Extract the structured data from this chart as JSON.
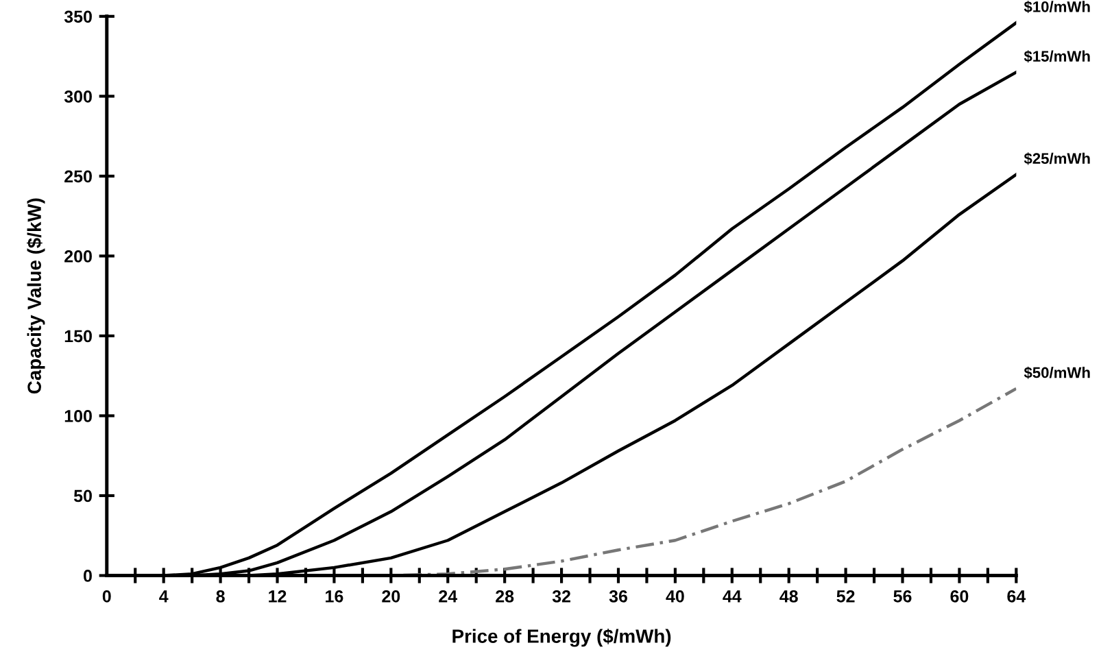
{
  "chart_data": {
    "type": "line",
    "xlabel": "Price of Energy ($/mWh)",
    "ylabel": "Capacity Value ($/kW)",
    "xlim": [
      0,
      64
    ],
    "ylim": [
      0,
      350
    ],
    "xticks": [
      0,
      {
        "value": 2,
        "label": null
      },
      4,
      {
        "value": 6,
        "label": null
      },
      8,
      {
        "value": 10,
        "label": null
      },
      12,
      {
        "value": 14,
        "label": null
      },
      16,
      {
        "value": 18,
        "label": null
      },
      20,
      {
        "value": 22,
        "label": null
      },
      24,
      {
        "value": 26,
        "label": null
      },
      28,
      {
        "value": 30,
        "label": null
      },
      32,
      {
        "value": 34,
        "label": null
      },
      36,
      {
        "value": 38,
        "label": null
      },
      40,
      {
        "value": 42,
        "label": null
      },
      44,
      {
        "value": 46,
        "label": null
      },
      48,
      {
        "value": 50,
        "label": null
      },
      52,
      {
        "value": 54,
        "label": null
      },
      56,
      {
        "value": 58,
        "label": null
      },
      60,
      {
        "value": 62,
        "label": null
      },
      64
    ],
    "yticks": [
      0,
      50,
      100,
      150,
      200,
      250,
      300,
      350
    ],
    "grid": false,
    "legend": false,
    "series": [
      {
        "name": "$10/mWh",
        "color": "#000000",
        "line_style": "solid",
        "x": [
          2,
          4,
          6,
          8,
          10,
          12,
          16,
          20,
          24,
          28,
          32,
          36,
          40,
          44,
          48,
          52,
          56,
          60,
          64
        ],
        "values": [
          0,
          0,
          1,
          5,
          11,
          19,
          42,
          64,
          88,
          112,
          137,
          162,
          188,
          217,
          242,
          268,
          293,
          320,
          346
        ]
      },
      {
        "name": "$15/mWh",
        "color": "#000000",
        "line_style": "solid",
        "x": [
          2,
          4,
          6,
          8,
          10,
          12,
          16,
          20,
          24,
          28,
          32,
          36,
          40,
          44,
          48,
          52,
          56,
          60,
          64
        ],
        "values": [
          0,
          0,
          0,
          1,
          3,
          8,
          22,
          40,
          62,
          85,
          112,
          139,
          165,
          191,
          217,
          243,
          269,
          295,
          315
        ]
      },
      {
        "name": "$25/mWh",
        "color": "#000000",
        "line_style": "solid",
        "x": [
          2,
          4,
          6,
          8,
          10,
          12,
          16,
          20,
          24,
          28,
          32,
          36,
          40,
          44,
          48,
          52,
          56,
          60,
          64
        ],
        "values": [
          0,
          0,
          0,
          0,
          0,
          1,
          5,
          11,
          22,
          40,
          58,
          78,
          97,
          119,
          145,
          171,
          197,
          226,
          251
        ]
      },
      {
        "name": "$50/mWh",
        "color": "#777777",
        "line_style": "dashed",
        "x": [
          2,
          8,
          16,
          20,
          24,
          28,
          32,
          36,
          40,
          44,
          48,
          52,
          56,
          60,
          64
        ],
        "values": [
          0,
          0,
          0,
          0,
          1,
          4,
          9,
          16,
          22,
          34,
          45,
          59,
          79,
          97,
          117
        ]
      }
    ]
  }
}
